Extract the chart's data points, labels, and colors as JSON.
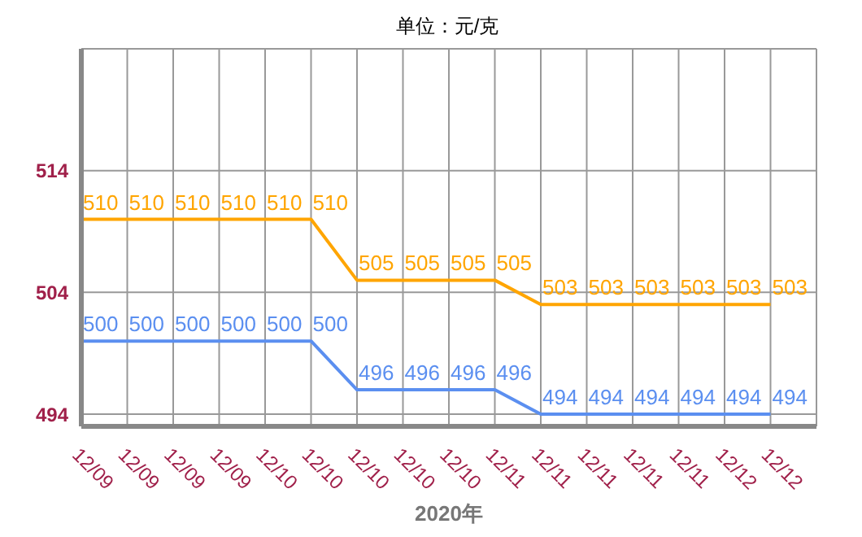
{
  "chart_data": {
    "type": "line",
    "title": "单位：元/克",
    "xlabel": "2020年",
    "categories": [
      "12/09",
      "12/09",
      "12/09",
      "12/09",
      "12/10",
      "12/10",
      "12/10",
      "12/10",
      "12/10",
      "12/11",
      "12/11",
      "12/11",
      "12/11",
      "12/11",
      "12/12",
      "12/12"
    ],
    "series": [
      {
        "color": "#ffa500",
        "values": [
          510,
          510,
          510,
          510,
          510,
          510,
          505,
          505,
          505,
          505,
          503,
          503,
          503,
          503,
          503,
          503
        ]
      },
      {
        "color": "#5b8ff0",
        "values": [
          500,
          500,
          500,
          500,
          500,
          500,
          496,
          496,
          496,
          496,
          494,
          494,
          494,
          494,
          494,
          494
        ]
      }
    ],
    "ylim": [
      493,
      524
    ],
    "yticks": [
      494,
      504,
      514
    ],
    "grid": true,
    "data_labels": true,
    "marker": "none",
    "line_style": "solid"
  }
}
